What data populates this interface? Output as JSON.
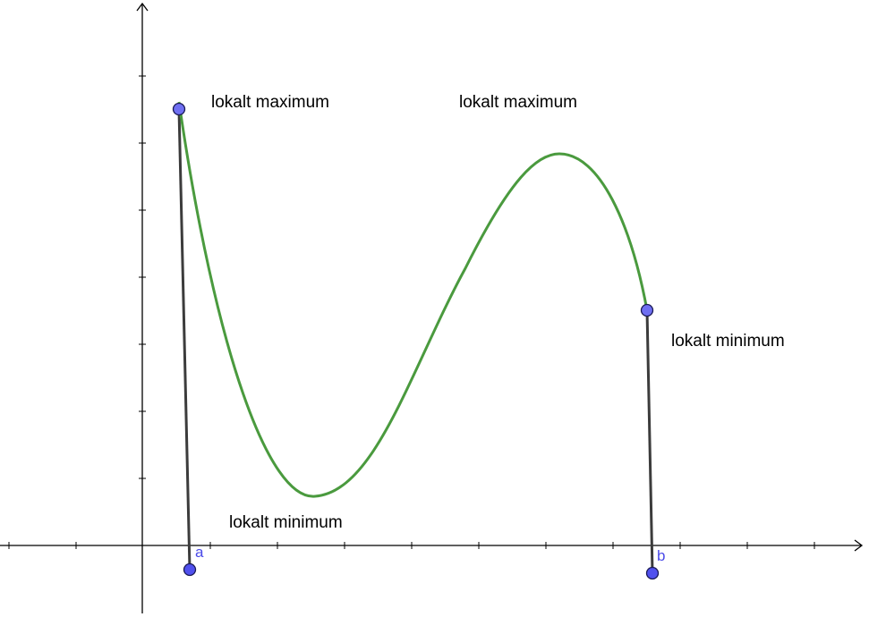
{
  "labels": {
    "max_left": "lokalt maximum",
    "max_right": "lokalt maximum",
    "min_right": "lokalt minimum",
    "min_bottom": "lokalt minimum"
  },
  "points": {
    "a": "a",
    "b": "b"
  },
  "colors": {
    "curve": "#4a9a3e",
    "segment": "#3c3c3c",
    "point_fill": "#6f6ff2",
    "point_stroke": "#1a1a55",
    "axis": "#000000",
    "label_blue": "#4a4ae8"
  }
}
